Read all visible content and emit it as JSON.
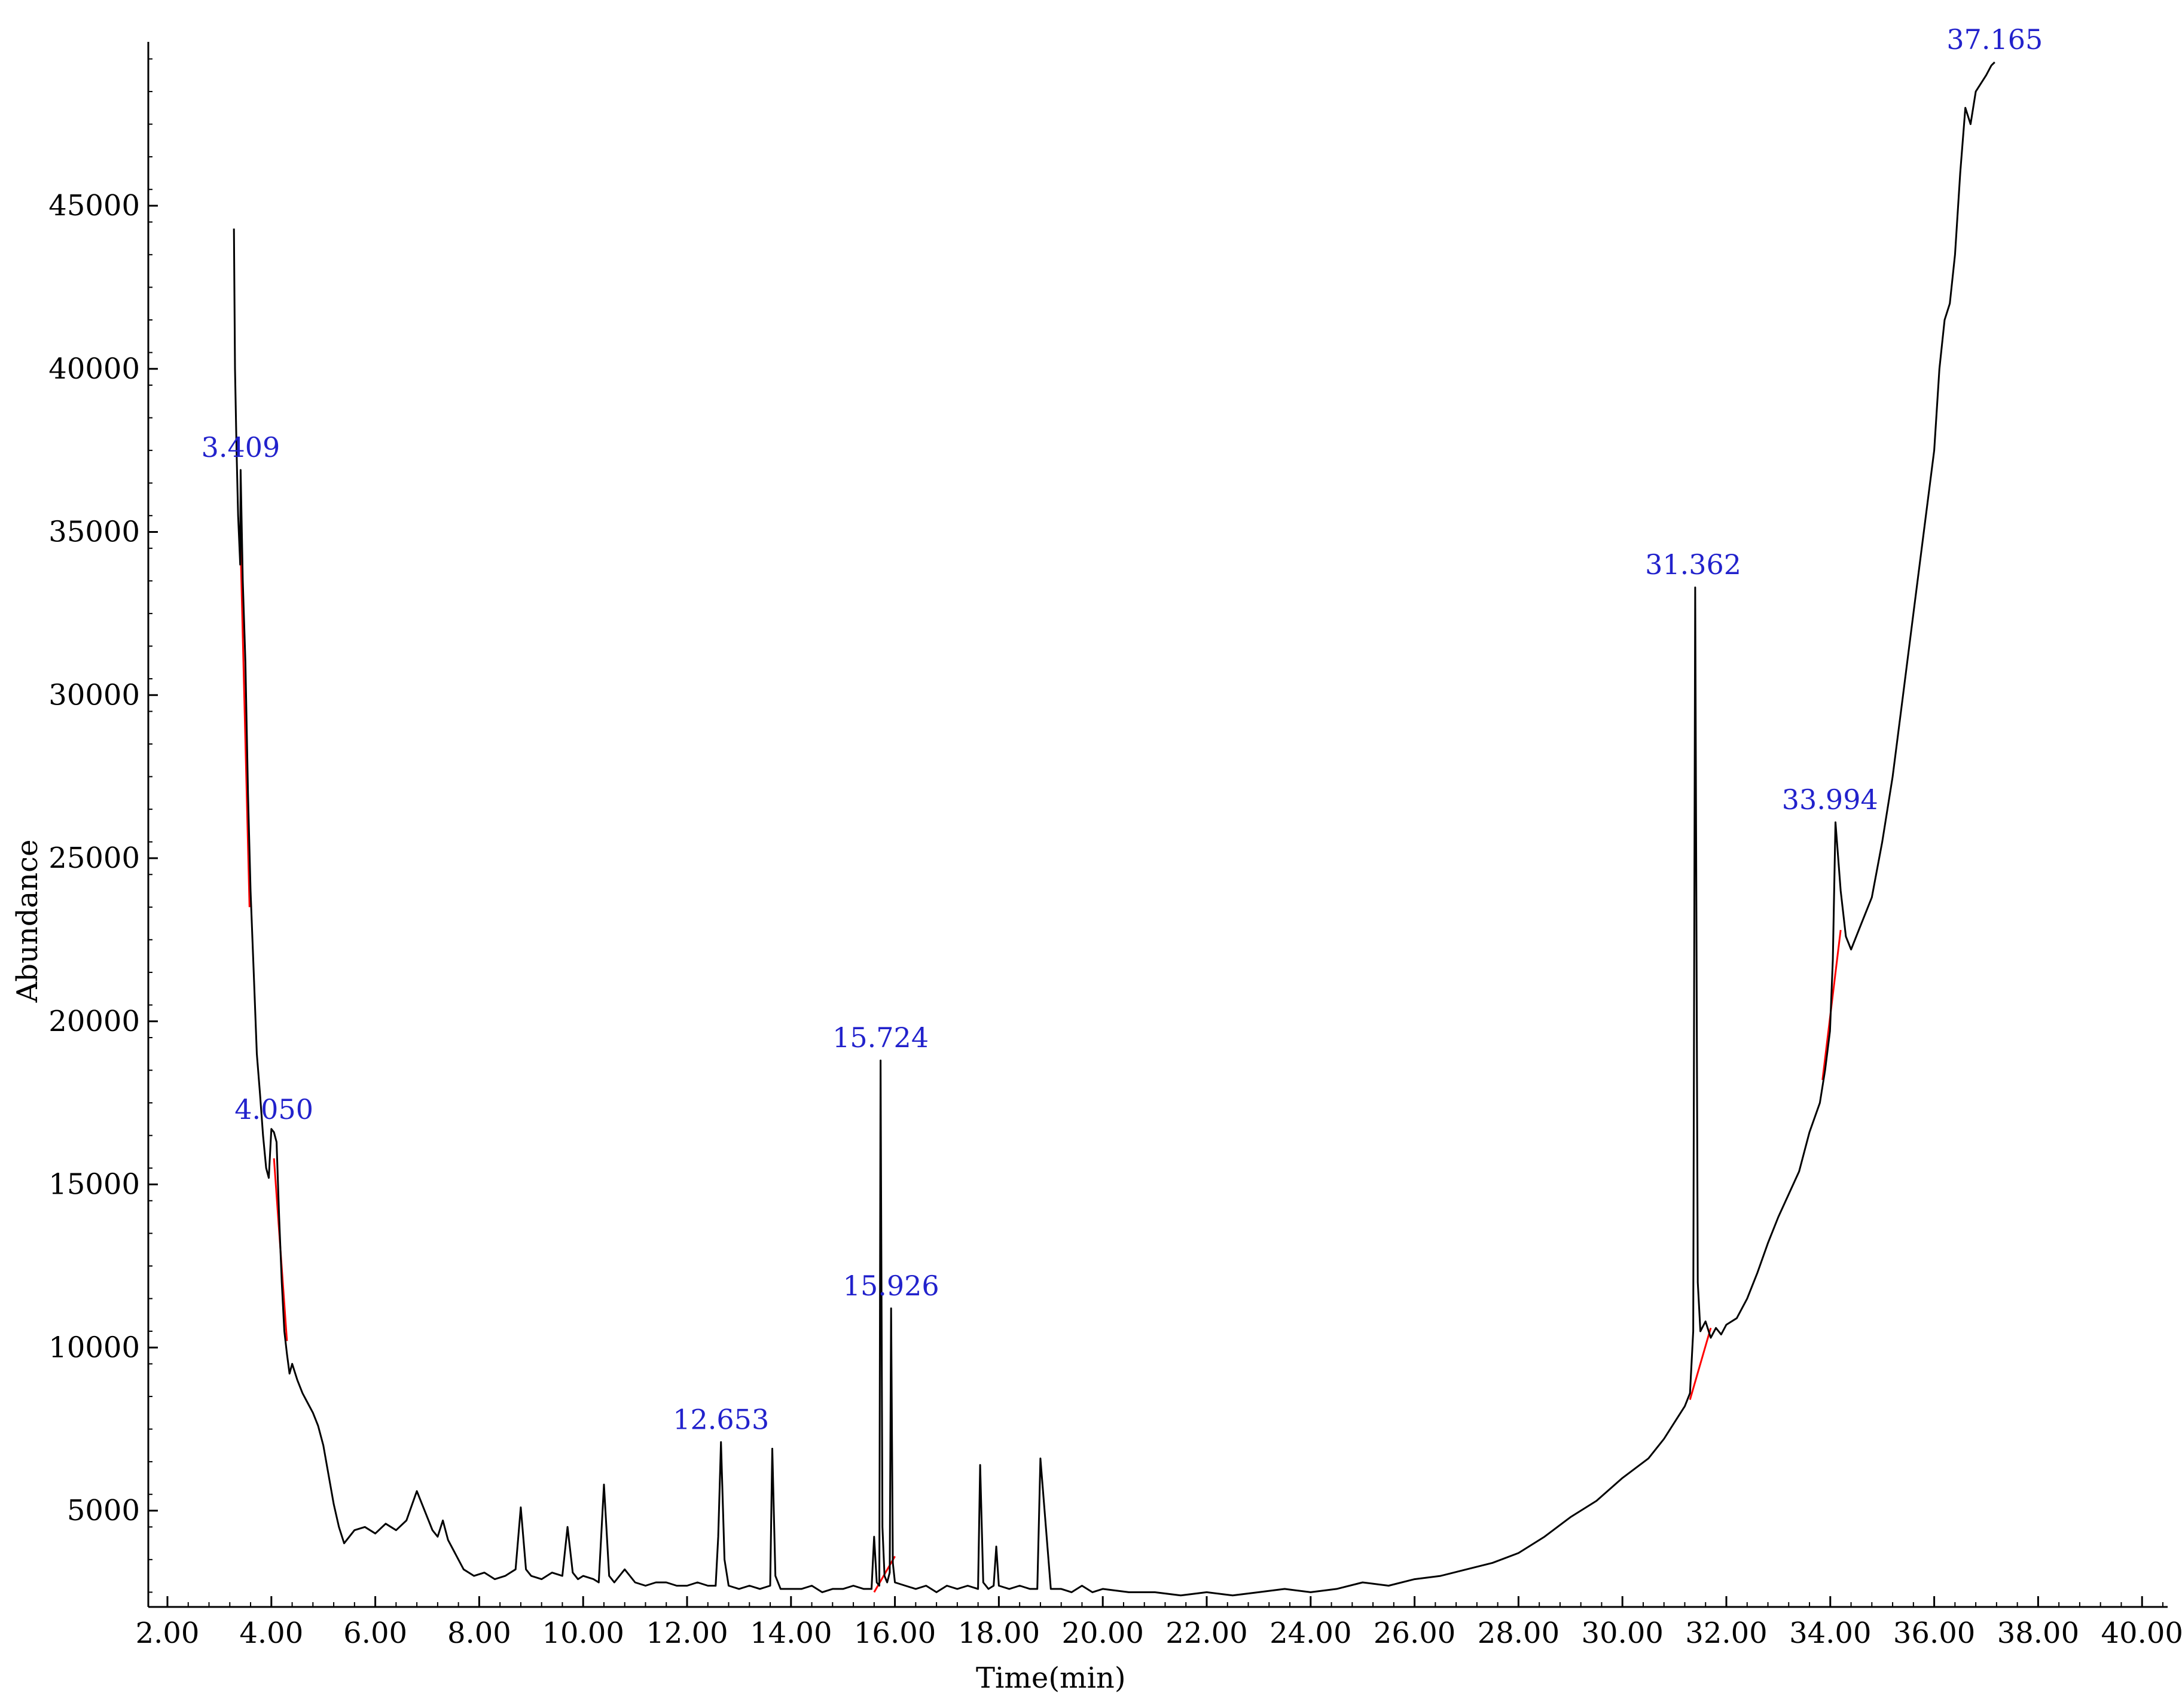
{
  "chart_data": {
    "type": "line",
    "title": "",
    "xlabel": "Time(min)",
    "ylabel": "Abundance",
    "xlim": [
      1.6,
      41.7
    ],
    "ylim": [
      1300,
      49500
    ],
    "grid": false,
    "x_ticks": [
      "2.00",
      "4.00",
      "6.00",
      "8.00",
      "10.00",
      "12.00",
      "14.00",
      "16.00",
      "18.00",
      "20.00",
      "22.00",
      "24.00",
      "26.00",
      "28.00",
      "30.00",
      "32.00",
      "34.00",
      "36.00",
      "38.00",
      "40.00"
    ],
    "y_ticks": [
      "5000",
      "10000",
      "15000",
      "20000",
      "25000",
      "30000",
      "35000",
      "40000",
      "45000"
    ],
    "colors": {
      "trace": "#000000",
      "baseline": "#ff0000",
      "peak_label": "#2222cc"
    },
    "series": [
      {
        "x": [
          3.28,
          3.3,
          3.33,
          3.36,
          3.4,
          3.409,
          3.45,
          3.5,
          3.55,
          3.6,
          3.66,
          3.72,
          3.78,
          3.84,
          3.9,
          3.95,
          4.0,
          4.05,
          4.1,
          4.15,
          4.2,
          4.25,
          4.3,
          4.35,
          4.4,
          4.5,
          4.6,
          4.7,
          4.8,
          4.9,
          5.0,
          5.1,
          5.2,
          5.3,
          5.4,
          5.5,
          5.6,
          5.8,
          6.0,
          6.2,
          6.4,
          6.6,
          6.8,
          7.0,
          7.1,
          7.2,
          7.3,
          7.4,
          7.5,
          7.7,
          7.9,
          8.1,
          8.3,
          8.5,
          8.6,
          8.7,
          8.8,
          8.9,
          9.0,
          9.2,
          9.4,
          9.6,
          9.7,
          9.8,
          9.9,
          10.0,
          10.2,
          10.3,
          10.4,
          10.5,
          10.6,
          10.8,
          11.0,
          11.2,
          11.4,
          11.6,
          11.8,
          12.0,
          12.2,
          12.4,
          12.55,
          12.6,
          12.653,
          12.72,
          12.8,
          13.0,
          13.2,
          13.4,
          13.6,
          13.64,
          13.7,
          13.8,
          14.0,
          14.2,
          14.4,
          14.6,
          14.8,
          15.0,
          15.2,
          15.4,
          15.55,
          15.6,
          15.65,
          15.7,
          15.724,
          15.76,
          15.8,
          15.85,
          15.9,
          15.926,
          15.96,
          16.0,
          16.2,
          16.4,
          16.6,
          16.8,
          17.0,
          17.2,
          17.4,
          17.6,
          17.64,
          17.7,
          17.8,
          17.9,
          17.95,
          18.0,
          18.2,
          18.4,
          18.6,
          18.74,
          18.8,
          19.0,
          19.2,
          19.4,
          19.6,
          19.8,
          20.0,
          20.5,
          21.0,
          21.5,
          22.0,
          22.5,
          23.0,
          23.5,
          24.0,
          24.5,
          25.0,
          25.5,
          26.0,
          26.5,
          27.0,
          27.5,
          28.0,
          28.5,
          29.0,
          29.5,
          30.0,
          30.5,
          30.8,
          31.0,
          31.2,
          31.3,
          31.362,
          31.4,
          31.45,
          31.5,
          31.6,
          31.7,
          31.8,
          31.9,
          32.0,
          32.2,
          32.4,
          32.6,
          32.8,
          33.0,
          33.2,
          33.4,
          33.6,
          33.8,
          33.9,
          33.994,
          34.05,
          34.1,
          34.2,
          34.3,
          34.4,
          34.6,
          34.8,
          35.0,
          35.2,
          35.4,
          35.6,
          35.8,
          36.0,
          36.1,
          36.2,
          36.3,
          36.4,
          36.5,
          36.6,
          36.7,
          36.8,
          37.0,
          37.1,
          37.165
        ],
        "y": [
          44300,
          40000,
          37500,
          35500,
          34000,
          36900,
          33500,
          31000,
          27000,
          24000,
          21500,
          19000,
          17800,
          16500,
          15500,
          15200,
          16700,
          16600,
          16300,
          14000,
          12000,
          10500,
          9800,
          9200,
          9500,
          9000,
          8600,
          8300,
          8000,
          7600,
          7000,
          6100,
          5200,
          4500,
          4000,
          4200,
          4400,
          4500,
          4300,
          4600,
          4400,
          4700,
          5600,
          4800,
          4400,
          4200,
          4700,
          4100,
          3800,
          3200,
          3000,
          3100,
          2900,
          3000,
          3100,
          3200,
          5100,
          3200,
          3000,
          2900,
          3100,
          3000,
          4500,
          3100,
          2900,
          3000,
          2900,
          2800,
          5800,
          3000,
          2800,
          3200,
          2800,
          2700,
          2800,
          2800,
          2700,
          2700,
          2800,
          2700,
          2700,
          4200,
          7100,
          3500,
          2700,
          2600,
          2700,
          2600,
          2700,
          6900,
          3000,
          2600,
          2600,
          2600,
          2700,
          2500,
          2600,
          2600,
          2700,
          2600,
          2600,
          4200,
          2800,
          2700,
          18800,
          4500,
          3000,
          2800,
          3100,
          11200,
          3400,
          2800,
          2700,
          2600,
          2700,
          2500,
          2700,
          2600,
          2700,
          2600,
          6400,
          2800,
          2600,
          2700,
          3900,
          2700,
          2600,
          2700,
          2600,
          2600,
          6600,
          2600,
          2600,
          2500,
          2700,
          2500,
          2600,
          2500,
          2500,
          2400,
          2500,
          2400,
          2500,
          2600,
          2500,
          2600,
          2800,
          2700,
          2900,
          3000,
          3200,
          3400,
          3700,
          4200,
          4800,
          5300,
          6000,
          6600,
          7200,
          7700,
          8200,
          8600,
          10500,
          33300,
          12000,
          10500,
          10800,
          10300,
          10600,
          10400,
          10700,
          10900,
          11500,
          12300,
          13200,
          14000,
          14700,
          15400,
          16600,
          17500,
          18500,
          19700,
          21900,
          26100,
          24000,
          22600,
          22200,
          23000,
          23800,
          25500,
          27500,
          30000,
          32500,
          35000,
          37500,
          40000,
          41500,
          42000,
          43500,
          46000,
          48000,
          47500,
          48500,
          49000,
          49300,
          49400
        ]
      }
    ],
    "peak_labels": [
      {
        "x": 3.409,
        "y": 36900,
        "text": "3.409"
      },
      {
        "x": 4.05,
        "y": 16600,
        "text": "4.050"
      },
      {
        "x": 12.653,
        "y": 7100,
        "text": "12.653"
      },
      {
        "x": 15.724,
        "y": 18800,
        "text": "15.724"
      },
      {
        "x": 15.926,
        "y": 11200,
        "text": "15.926"
      },
      {
        "x": 31.362,
        "y": 33300,
        "text": "31.362"
      },
      {
        "x": 33.994,
        "y": 26100,
        "text": "33.994"
      },
      {
        "x": 37.165,
        "y": 49400,
        "text": "37.165"
      }
    ],
    "baselines": [
      [
        [
          3.4,
          35000
        ],
        [
          3.58,
          23500
        ]
      ],
      [
        [
          4.05,
          15800
        ],
        [
          4.3,
          10200
        ]
      ],
      [
        [
          15.6,
          2500
        ],
        [
          16.0,
          3600
        ]
      ],
      [
        [
          31.3,
          8400
        ],
        [
          31.7,
          10600
        ]
      ],
      [
        [
          33.85,
          18200
        ],
        [
          34.2,
          22800
        ]
      ]
    ]
  }
}
